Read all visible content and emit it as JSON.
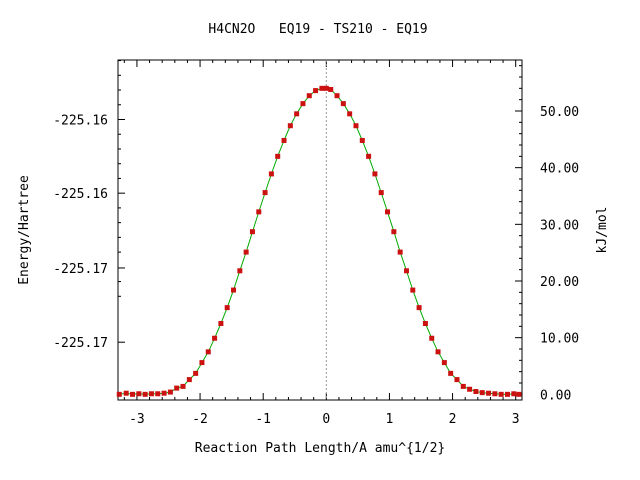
{
  "chart_data": {
    "type": "line",
    "title": "H4CN2O   EQ19 - TS210 - EQ19",
    "xlabel": "Reaction Path Length/A amu^{1/2}",
    "ylabel_left": "Energy/Hartree",
    "ylabel_right": "kJ/mol",
    "xlim": [
      -3.3,
      3.1
    ],
    "ylim_kjmol": [
      -1,
      59
    ],
    "x_ticks": [
      "-3",
      "-2",
      "-1",
      "0",
      "1",
      "2",
      "3"
    ],
    "x_tick_values": [
      -3,
      -2,
      -1,
      0,
      1,
      2,
      3
    ],
    "y_left_ticks": [
      {
        "label": "-225.16",
        "kjmol": 48.5
      },
      {
        "label": "-225.16",
        "kjmol": 35.5
      },
      {
        "label": "-225.17",
        "kjmol": 22.3
      },
      {
        "label": "-225.17",
        "kjmol": 9.2
      }
    ],
    "y_right_ticks": [
      "0.00",
      "10.00",
      "20.00",
      "30.00",
      "40.00",
      "50.00"
    ],
    "y_right_tick_values": [
      0,
      10,
      20,
      30,
      40,
      50
    ],
    "series": [
      {
        "line_color": "#00aa00",
        "marker_color": "#cc1111",
        "x": [
          -3.28,
          -3.17,
          -3.07,
          -2.97,
          -2.87,
          -2.77,
          -2.67,
          -2.57,
          -2.47,
          -2.37,
          -2.27,
          -2.17,
          -2.07,
          -1.97,
          -1.87,
          -1.77,
          -1.67,
          -1.57,
          -1.47,
          -1.37,
          -1.27,
          -1.17,
          -1.07,
          -0.97,
          -0.87,
          -0.77,
          -0.67,
          -0.57,
          -0.47,
          -0.37,
          -0.27,
          -0.17,
          -0.07,
          0.0,
          0.07,
          0.17,
          0.27,
          0.37,
          0.47,
          0.57,
          0.67,
          0.77,
          0.87,
          0.97,
          1.07,
          1.17,
          1.27,
          1.37,
          1.47,
          1.57,
          1.67,
          1.77,
          1.87,
          1.97,
          2.07,
          2.17,
          2.27,
          2.37,
          2.47,
          2.57,
          2.67,
          2.77,
          2.87,
          2.97,
          3.05
        ],
        "y": [
          0.0,
          0.2,
          0.0,
          0.1,
          0.0,
          0.1,
          0.1,
          0.2,
          0.4,
          1.1,
          1.4,
          2.6,
          3.7,
          5.6,
          7.5,
          9.9,
          12.5,
          15.3,
          18.4,
          21.8,
          25.1,
          28.7,
          32.2,
          35.6,
          38.9,
          42.0,
          44.8,
          47.4,
          49.5,
          51.3,
          52.7,
          53.6,
          54.0,
          54.0,
          53.8,
          52.7,
          51.3,
          49.5,
          47.4,
          44.8,
          42.0,
          38.9,
          35.6,
          32.2,
          28.7,
          25.1,
          21.8,
          18.4,
          15.3,
          12.5,
          9.9,
          7.5,
          5.6,
          3.7,
          2.6,
          1.4,
          0.9,
          0.5,
          0.3,
          0.2,
          0.1,
          0.0,
          0.0,
          0.1,
          0.0
        ]
      }
    ],
    "vline_x": 0,
    "grid": false
  }
}
